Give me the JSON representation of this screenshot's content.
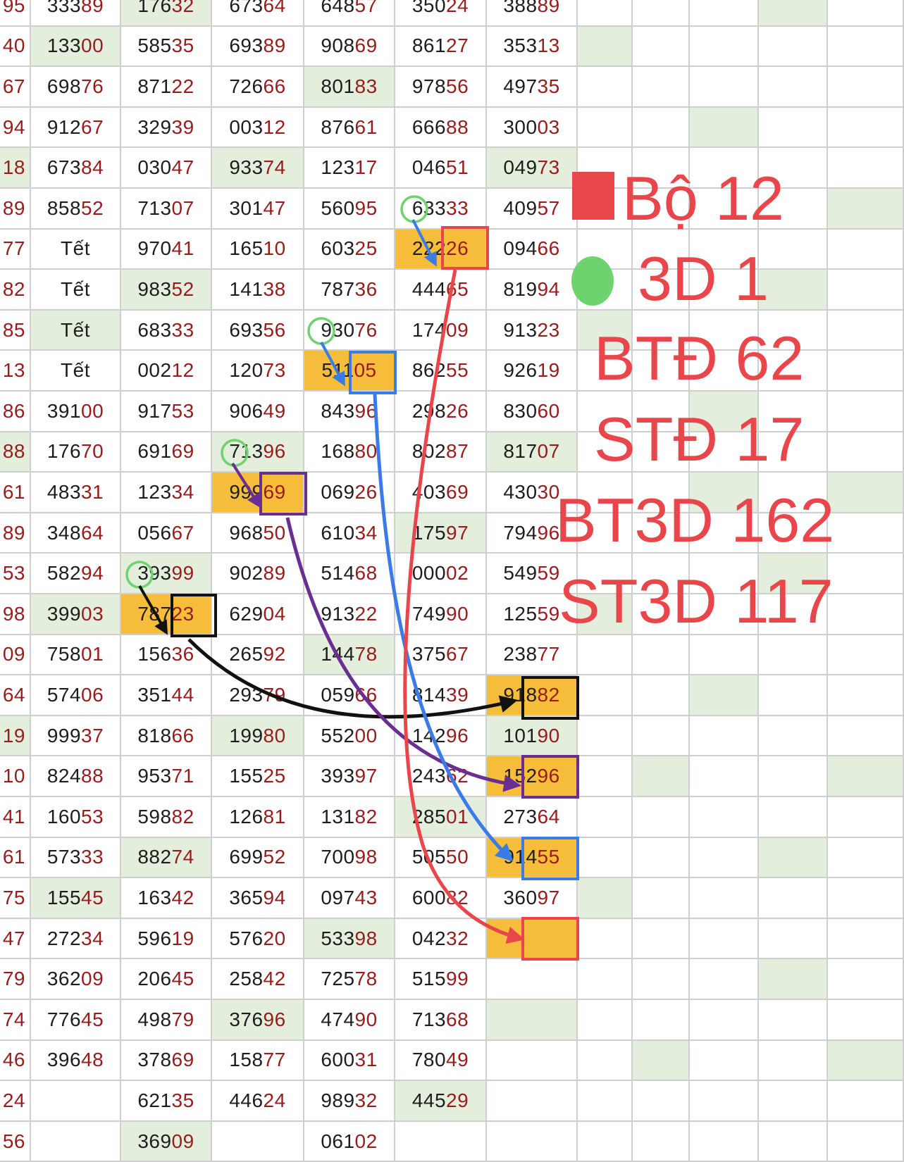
{
  "table": {
    "rows": [
      [
        {
          "t": "95"
        },
        {
          "t": "33389"
        },
        {
          "t": "17632",
          "bg": "g"
        },
        {
          "t": "67364"
        },
        {
          "t": "64857"
        },
        {
          "t": "35024"
        },
        {
          "t": "38889"
        },
        {
          "t": ""
        },
        {
          "t": ""
        },
        {
          "t": ""
        },
        {
          "t": "",
          "bg": "g"
        },
        {
          "t": ""
        }
      ],
      [
        {
          "t": "40"
        },
        {
          "t": "13300",
          "bg": "g"
        },
        {
          "t": "58535"
        },
        {
          "t": "69389"
        },
        {
          "t": "90869"
        },
        {
          "t": "86127"
        },
        {
          "t": "35313"
        },
        {
          "t": "",
          "bg": "g"
        },
        {
          "t": ""
        },
        {
          "t": ""
        },
        {
          "t": ""
        },
        {
          "t": ""
        }
      ],
      [
        {
          "t": "67"
        },
        {
          "t": "69876"
        },
        {
          "t": "87122"
        },
        {
          "t": "72666"
        },
        {
          "t": "80183",
          "bg": "g"
        },
        {
          "t": "97856"
        },
        {
          "t": "49735"
        },
        {
          "t": ""
        },
        {
          "t": ""
        },
        {
          "t": ""
        },
        {
          "t": ""
        },
        {
          "t": ""
        }
      ],
      [
        {
          "t": "94"
        },
        {
          "t": "91267"
        },
        {
          "t": "32939"
        },
        {
          "t": "00312"
        },
        {
          "t": "87661"
        },
        {
          "t": "66688"
        },
        {
          "t": "30003"
        },
        {
          "t": ""
        },
        {
          "t": ""
        },
        {
          "t": "",
          "bg": "g"
        },
        {
          "t": ""
        },
        {
          "t": ""
        }
      ],
      [
        {
          "t": "18",
          "bg": "g"
        },
        {
          "t": "67384"
        },
        {
          "t": "03047"
        },
        {
          "t": "93374",
          "bg": "g"
        },
        {
          "t": "12317"
        },
        {
          "t": "04651"
        },
        {
          "t": "04973",
          "bg": "g"
        },
        {
          "t": ""
        },
        {
          "t": ""
        },
        {
          "t": ""
        },
        {
          "t": ""
        },
        {
          "t": ""
        }
      ],
      [
        {
          "t": "89"
        },
        {
          "t": "85852"
        },
        {
          "t": "71307"
        },
        {
          "t": "30147"
        },
        {
          "t": "56095"
        },
        {
          "t": "63333"
        },
        {
          "t": "40957"
        },
        {
          "t": ""
        },
        {
          "t": ""
        },
        {
          "t": ""
        },
        {
          "t": ""
        },
        {
          "t": "",
          "bg": "g"
        }
      ],
      [
        {
          "t": "77"
        },
        {
          "t": "Tết"
        },
        {
          "t": "97041"
        },
        {
          "t": "16510"
        },
        {
          "t": "60325"
        },
        {
          "t": "22226",
          "bg": "y"
        },
        {
          "t": "09466"
        },
        {
          "t": ""
        },
        {
          "t": ""
        },
        {
          "t": ""
        },
        {
          "t": ""
        },
        {
          "t": ""
        }
      ],
      [
        {
          "t": "82"
        },
        {
          "t": "Tết"
        },
        {
          "t": "98352",
          "bg": "g"
        },
        {
          "t": "14138"
        },
        {
          "t": "78736"
        },
        {
          "t": "44465"
        },
        {
          "t": "81994"
        },
        {
          "t": ""
        },
        {
          "t": ""
        },
        {
          "t": ""
        },
        {
          "t": "",
          "bg": "g"
        },
        {
          "t": ""
        }
      ],
      [
        {
          "t": "85"
        },
        {
          "t": "Tết",
          "bg": "g"
        },
        {
          "t": "68333"
        },
        {
          "t": "69356"
        },
        {
          "t": "93076"
        },
        {
          "t": "17409"
        },
        {
          "t": "91323"
        },
        {
          "t": "",
          "bg": "g"
        },
        {
          "t": ""
        },
        {
          "t": ""
        },
        {
          "t": ""
        },
        {
          "t": ""
        }
      ],
      [
        {
          "t": "13"
        },
        {
          "t": "Tết"
        },
        {
          "t": "00212"
        },
        {
          "t": "12073"
        },
        {
          "t": "51105",
          "bg": "y"
        },
        {
          "t": "86255"
        },
        {
          "t": "92619"
        },
        {
          "t": ""
        },
        {
          "t": ""
        },
        {
          "t": ""
        },
        {
          "t": ""
        },
        {
          "t": ""
        }
      ],
      [
        {
          "t": "86"
        },
        {
          "t": "39100"
        },
        {
          "t": "91753"
        },
        {
          "t": "90649"
        },
        {
          "t": "84396"
        },
        {
          "t": "29826"
        },
        {
          "t": "83060"
        },
        {
          "t": ""
        },
        {
          "t": ""
        },
        {
          "t": "",
          "bg": "g"
        },
        {
          "t": ""
        },
        {
          "t": ""
        }
      ],
      [
        {
          "t": "88",
          "bg": "g"
        },
        {
          "t": "17670"
        },
        {
          "t": "69169"
        },
        {
          "t": "71396",
          "bg": "g"
        },
        {
          "t": "16880"
        },
        {
          "t": "80287"
        },
        {
          "t": "81707",
          "bg": "g"
        },
        {
          "t": ""
        },
        {
          "t": ""
        },
        {
          "t": ""
        },
        {
          "t": ""
        },
        {
          "t": ""
        }
      ],
      [
        {
          "t": "61"
        },
        {
          "t": "48331"
        },
        {
          "t": "12334"
        },
        {
          "t": "99969",
          "bg": "y"
        },
        {
          "t": "06926"
        },
        {
          "t": "40369"
        },
        {
          "t": "43030"
        },
        {
          "t": ""
        },
        {
          "t": ""
        },
        {
          "t": "",
          "bg": "g"
        },
        {
          "t": ""
        },
        {
          "t": "",
          "bg": "g"
        }
      ],
      [
        {
          "t": "89"
        },
        {
          "t": "34864"
        },
        {
          "t": "05667"
        },
        {
          "t": "96850"
        },
        {
          "t": "61034"
        },
        {
          "t": "17597",
          "bg": "g"
        },
        {
          "t": "79496"
        },
        {
          "t": ""
        },
        {
          "t": ""
        },
        {
          "t": ""
        },
        {
          "t": ""
        },
        {
          "t": ""
        }
      ],
      [
        {
          "t": "53"
        },
        {
          "t": "58294"
        },
        {
          "t": "39399",
          "bg": "g"
        },
        {
          "t": "90289"
        },
        {
          "t": "51468"
        },
        {
          "t": "00002"
        },
        {
          "t": "54959"
        },
        {
          "t": ""
        },
        {
          "t": ""
        },
        {
          "t": ""
        },
        {
          "t": "",
          "bg": "g"
        },
        {
          "t": ""
        }
      ],
      [
        {
          "t": "98"
        },
        {
          "t": "39903",
          "bg": "g"
        },
        {
          "t": "78723",
          "bg": "y"
        },
        {
          "t": "62904"
        },
        {
          "t": "91322"
        },
        {
          "t": "74990"
        },
        {
          "t": "12559"
        },
        {
          "t": "",
          "bg": "g"
        },
        {
          "t": ""
        },
        {
          "t": ""
        },
        {
          "t": ""
        },
        {
          "t": ""
        }
      ],
      [
        {
          "t": "09"
        },
        {
          "t": "75801"
        },
        {
          "t": "15636"
        },
        {
          "t": "26592"
        },
        {
          "t": "14478",
          "bg": "g"
        },
        {
          "t": "37567"
        },
        {
          "t": "23877"
        },
        {
          "t": ""
        },
        {
          "t": ""
        },
        {
          "t": ""
        },
        {
          "t": ""
        },
        {
          "t": ""
        }
      ],
      [
        {
          "t": "64"
        },
        {
          "t": "57406"
        },
        {
          "t": "35144"
        },
        {
          "t": "29379"
        },
        {
          "t": "05966"
        },
        {
          "t": "81439"
        },
        {
          "t": "91882",
          "bg": "y"
        },
        {
          "t": ""
        },
        {
          "t": ""
        },
        {
          "t": "",
          "bg": "g"
        },
        {
          "t": ""
        },
        {
          "t": ""
        }
      ],
      [
        {
          "t": "19",
          "bg": "g"
        },
        {
          "t": "99937"
        },
        {
          "t": "81866"
        },
        {
          "t": "19980",
          "bg": "g"
        },
        {
          "t": "55200"
        },
        {
          "t": "14296"
        },
        {
          "t": "10190",
          "bg": "g"
        },
        {
          "t": ""
        },
        {
          "t": ""
        },
        {
          "t": ""
        },
        {
          "t": ""
        },
        {
          "t": ""
        }
      ],
      [
        {
          "t": "10"
        },
        {
          "t": "82488"
        },
        {
          "t": "95371"
        },
        {
          "t": "15525"
        },
        {
          "t": "39397"
        },
        {
          "t": "24362"
        },
        {
          "t": "15296",
          "bg": "y"
        },
        {
          "t": ""
        },
        {
          "t": "",
          "bg": "g"
        },
        {
          "t": ""
        },
        {
          "t": ""
        },
        {
          "t": "",
          "bg": "g"
        }
      ],
      [
        {
          "t": "41"
        },
        {
          "t": "16053"
        },
        {
          "t": "59882"
        },
        {
          "t": "12681"
        },
        {
          "t": "13182"
        },
        {
          "t": "28501",
          "bg": "g"
        },
        {
          "t": "27364"
        },
        {
          "t": ""
        },
        {
          "t": ""
        },
        {
          "t": ""
        },
        {
          "t": ""
        },
        {
          "t": ""
        }
      ],
      [
        {
          "t": "61"
        },
        {
          "t": "57333"
        },
        {
          "t": "88274",
          "bg": "g"
        },
        {
          "t": "69952"
        },
        {
          "t": "70098"
        },
        {
          "t": "50550"
        },
        {
          "t": "91455",
          "bg": "y"
        },
        {
          "t": ""
        },
        {
          "t": ""
        },
        {
          "t": ""
        },
        {
          "t": "",
          "bg": "g"
        },
        {
          "t": ""
        }
      ],
      [
        {
          "t": "75"
        },
        {
          "t": "15545",
          "bg": "g"
        },
        {
          "t": "16342"
        },
        {
          "t": "36594"
        },
        {
          "t": "09743"
        },
        {
          "t": "60082"
        },
        {
          "t": "36097"
        },
        {
          "t": "",
          "bg": "g"
        },
        {
          "t": ""
        },
        {
          "t": ""
        },
        {
          "t": ""
        },
        {
          "t": ""
        }
      ],
      [
        {
          "t": "47"
        },
        {
          "t": "27234"
        },
        {
          "t": "59619"
        },
        {
          "t": "57620"
        },
        {
          "t": "53398",
          "bg": "g"
        },
        {
          "t": "04232"
        },
        {
          "t": "",
          "bg": "y"
        },
        {
          "t": ""
        },
        {
          "t": ""
        },
        {
          "t": ""
        },
        {
          "t": ""
        },
        {
          "t": ""
        }
      ],
      [
        {
          "t": "79"
        },
        {
          "t": "36209"
        },
        {
          "t": "20645"
        },
        {
          "t": "25842"
        },
        {
          "t": "72578"
        },
        {
          "t": "51599"
        },
        {
          "t": ""
        },
        {
          "t": ""
        },
        {
          "t": ""
        },
        {
          "t": ""
        },
        {
          "t": "",
          "bg": "g"
        },
        {
          "t": ""
        }
      ],
      [
        {
          "t": "74"
        },
        {
          "t": "77645"
        },
        {
          "t": "49879"
        },
        {
          "t": "37696",
          "bg": "g"
        },
        {
          "t": "47490"
        },
        {
          "t": "71368"
        },
        {
          "t": "",
          "bg": "g"
        },
        {
          "t": ""
        },
        {
          "t": ""
        },
        {
          "t": ""
        },
        {
          "t": ""
        },
        {
          "t": ""
        }
      ],
      [
        {
          "t": "46"
        },
        {
          "t": "39648"
        },
        {
          "t": "37869"
        },
        {
          "t": "15877"
        },
        {
          "t": "60031"
        },
        {
          "t": "78049"
        },
        {
          "t": ""
        },
        {
          "t": ""
        },
        {
          "t": "",
          "bg": "g"
        },
        {
          "t": ""
        },
        {
          "t": ""
        },
        {
          "t": "",
          "bg": "g"
        }
      ],
      [
        {
          "t": "24"
        },
        {
          "t": ""
        },
        {
          "t": "62135"
        },
        {
          "t": "44624"
        },
        {
          "t": "98932"
        },
        {
          "t": "44529",
          "bg": "g"
        },
        {
          "t": ""
        },
        {
          "t": ""
        },
        {
          "t": ""
        },
        {
          "t": ""
        },
        {
          "t": ""
        },
        {
          "t": ""
        }
      ],
      [
        {
          "t": "56"
        },
        {
          "t": ""
        },
        {
          "t": "36909",
          "bg": "g"
        },
        {
          "t": ""
        },
        {
          "t": "06102"
        },
        {
          "t": ""
        },
        {
          "t": ""
        },
        {
          "t": ""
        },
        {
          "t": ""
        },
        {
          "t": ""
        },
        {
          "t": ""
        },
        {
          "t": ""
        }
      ]
    ]
  },
  "legend": {
    "bo_label": "Bộ 12",
    "d3_label": "3D 1",
    "btd_label": "BTĐ 62",
    "std_label": "STĐ 17",
    "bt3d_label": "BT3D 162",
    "st3d_label": "ST3D 117"
  },
  "colors": {
    "legend_red": "#e8464b",
    "legend_green": "#6ed36e",
    "highlight_yellow": "#f6bd3a",
    "light_green": "#e3efdc",
    "arrow_blue": "#3b7be8",
    "arrow_purple": "#6a2d91",
    "arrow_black": "#111111",
    "arrow_red": "#e8464b"
  },
  "annotations": {
    "marker_icons": [
      "green-circle-icon",
      "red-square-icon",
      "blue-square-icon",
      "purple-square-icon",
      "black-square-icon"
    ],
    "arrow_icons": [
      "red-arrow",
      "blue-arrow",
      "purple-arrow",
      "black-arrow"
    ]
  }
}
